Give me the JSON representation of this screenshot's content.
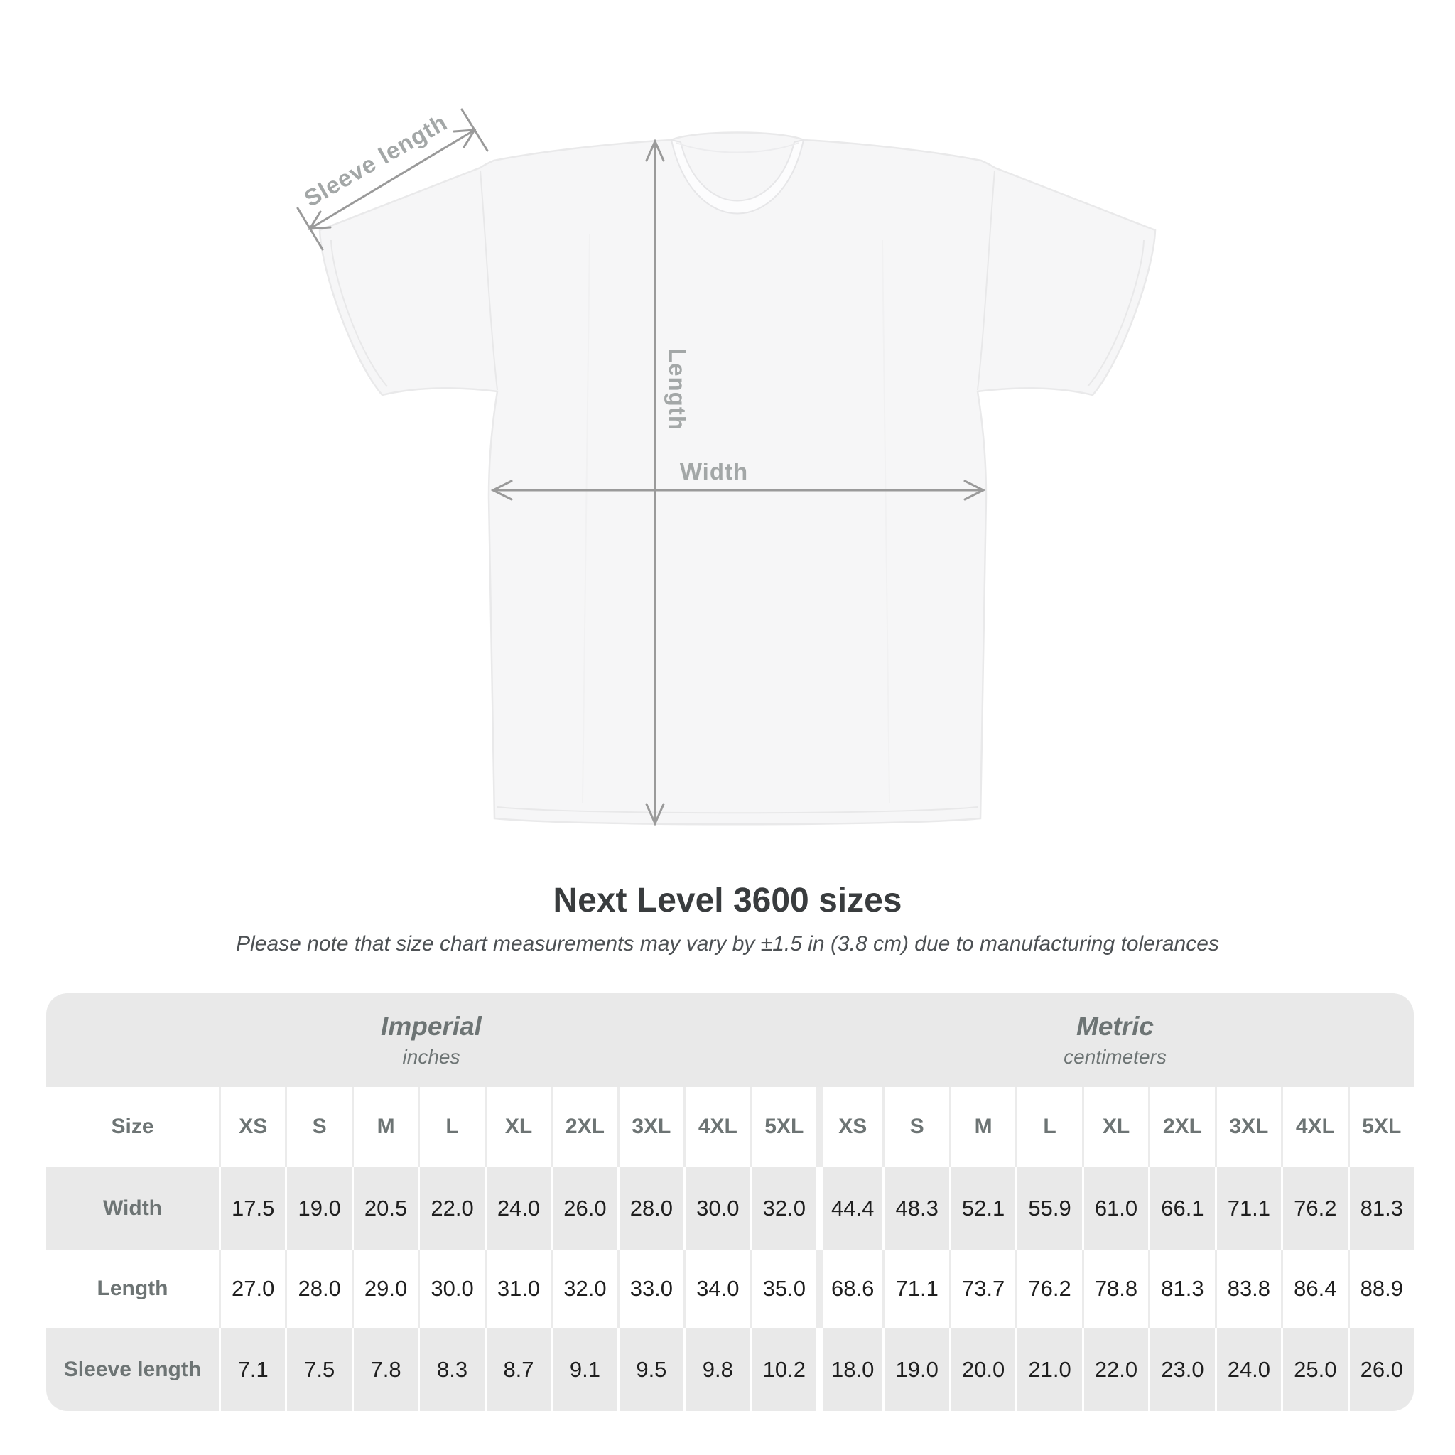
{
  "title": "Next Level 3600 sizes",
  "note": "Please note that size chart measurements may vary by ±1.5 in (3.8 cm) due to manufacturing tolerances",
  "diagram": {
    "labels": {
      "sleeve_length": "Sleeve length",
      "length": "Length",
      "width": "Width"
    }
  },
  "table": {
    "size_header_label": "Size",
    "sizes": [
      "XS",
      "S",
      "M",
      "L",
      "XL",
      "2XL",
      "3XL",
      "4XL",
      "5XL"
    ],
    "unit_groups": [
      {
        "label": "Imperial",
        "sublabel": "inches"
      },
      {
        "label": "Metric",
        "sublabel": "centimeters"
      }
    ],
    "rows": [
      {
        "label": "Width",
        "imperial": [
          "17.5",
          "19.0",
          "20.5",
          "22.0",
          "24.0",
          "26.0",
          "28.0",
          "30.0",
          "32.0"
        ],
        "metric": [
          "44.4",
          "48.3",
          "52.1",
          "55.9",
          "61.0",
          "66.1",
          "71.1",
          "76.2",
          "81.3"
        ]
      },
      {
        "label": "Length",
        "imperial": [
          "27.0",
          "28.0",
          "29.0",
          "30.0",
          "31.0",
          "32.0",
          "33.0",
          "34.0",
          "35.0"
        ],
        "metric": [
          "68.6",
          "71.1",
          "73.7",
          "76.2",
          "78.8",
          "81.3",
          "83.8",
          "86.4",
          "88.9"
        ]
      },
      {
        "label": "Sleeve length",
        "imperial": [
          "7.1",
          "7.5",
          "7.8",
          "8.3",
          "8.7",
          "9.1",
          "9.5",
          "9.8",
          "10.2"
        ],
        "metric": [
          "18.0",
          "19.0",
          "20.0",
          "21.0",
          "22.0",
          "23.0",
          "24.0",
          "25.0",
          "26.0"
        ]
      }
    ]
  },
  "colors": {
    "arrow": "#9a9a9a",
    "dimension_label": "#a3a7a7",
    "table_background": "#e9e9e9",
    "header_text": "#6d7474",
    "value_text": "#1f1f1f",
    "shirt_fill": "#f6f6f7",
    "shirt_line": "#e9e9ea"
  }
}
